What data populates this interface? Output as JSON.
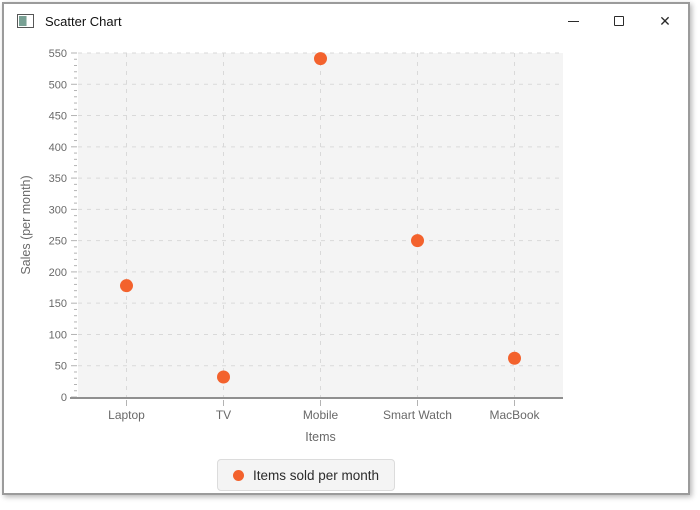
{
  "window": {
    "title": "Scatter Chart",
    "icon": "java-app-icon",
    "controls": {
      "minimize": "minimize",
      "maximize": "maximize",
      "close_glyph": "✕"
    }
  },
  "chart_data": {
    "type": "scatter",
    "title": "",
    "xlabel": "Items",
    "ylabel": "Sales (per month)",
    "categories": [
      "Laptop",
      "TV",
      "Mobile",
      "Smart Watch",
      "MacBook"
    ],
    "series": [
      {
        "name": "Items sold per month",
        "values": [
          178,
          32,
          541,
          250,
          62
        ]
      }
    ],
    "ylim": [
      0,
      550
    ],
    "ytick_step": 50,
    "minor_ticks_per_major": 5,
    "grid": "dashed",
    "legend_position": "bottom"
  },
  "colors": {
    "point": "#f3622d",
    "plot_background": "#f4f4f4",
    "gridline": "#d9d9d9",
    "tick_mark": "#b3b3b3",
    "tick_label": "#696969",
    "axis_label": "#696969",
    "axis_line": "#8f8f8f",
    "legend_background": "#f4f4f4",
    "legend_border": "#dcdcdc",
    "title_text": "#111111",
    "window_border": "#9b9b9b"
  }
}
